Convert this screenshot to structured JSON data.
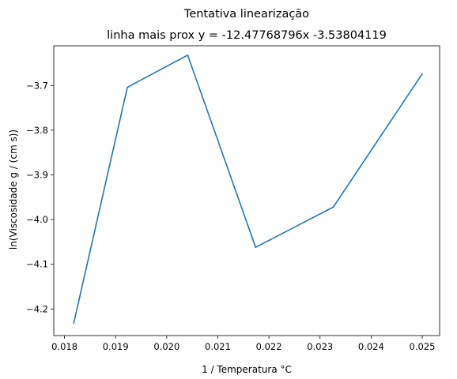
{
  "chart_data": {
    "type": "line",
    "title": "Tentativa linearização",
    "subtitle": "linha mais prox y = -12.47768796x -3.53804119",
    "xlabel": "1 / Temperatura °C",
    "ylabel": "ln(Viscosidade g / (cm s))",
    "xlim": [
      0.01779,
      0.02534
    ],
    "ylim": [
      -4.2595,
      -3.6112
    ],
    "xticks": [
      0.018,
      0.019,
      0.02,
      0.021,
      0.022,
      0.023,
      0.024,
      0.025
    ],
    "xtick_labels": [
      "0.018",
      "0.019",
      "0.020",
      "0.021",
      "0.022",
      "0.023",
      "0.024",
      "0.025"
    ],
    "yticks": [
      -4.2,
      -4.1,
      -4.0,
      -3.9,
      -3.8,
      -3.7
    ],
    "ytick_labels": [
      "−4.2",
      "−4.1",
      "−4.0",
      "−3.9",
      "−3.8",
      "−3.7"
    ],
    "grid": false,
    "series": [
      {
        "color": "#1f77b4",
        "x": [
          0.01818,
          0.01923,
          0.02041,
          0.02174,
          0.02326,
          0.025
        ],
        "y": [
          -4.232,
          -3.704,
          -3.632,
          -4.062,
          -3.972,
          -3.674
        ]
      }
    ]
  }
}
